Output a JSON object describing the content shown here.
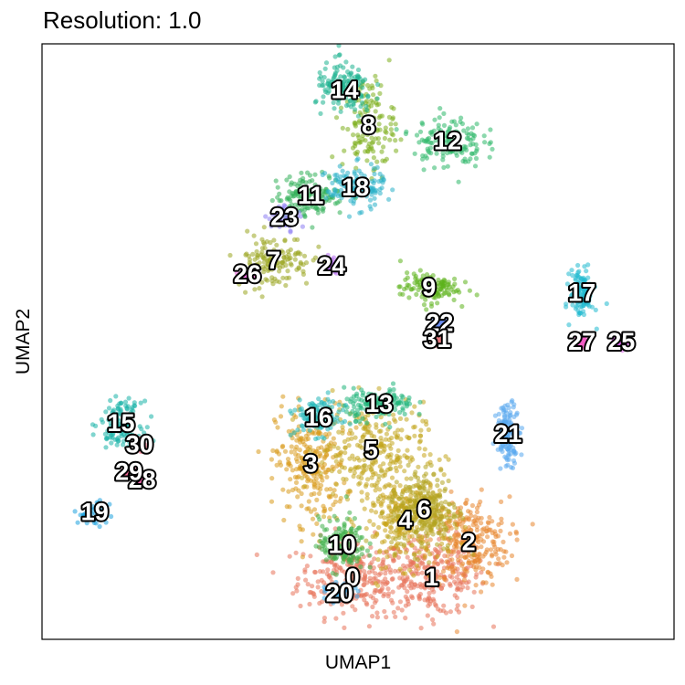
{
  "chart_data": {
    "type": "scatter",
    "title": "Resolution: 1.0",
    "xlabel": "UMAP1",
    "ylabel": "UMAP2",
    "grid": false,
    "legend": "none",
    "clusters": [
      {
        "label": "0",
        "x": 5.3,
        "y": 1.3,
        "color": "#E8735A"
      },
      {
        "label": "1",
        "x": 8.3,
        "y": 1.3,
        "color": "#E8735A"
      },
      {
        "label": "2",
        "x": 9.7,
        "y": 2.6,
        "color": "#E8862F"
      },
      {
        "label": "3",
        "x": 3.7,
        "y": 5.5,
        "color": "#D89B1C"
      },
      {
        "label": "4",
        "x": 7.3,
        "y": 3.4,
        "color": "#C9A41A"
      },
      {
        "label": "5",
        "x": 6.0,
        "y": 6.0,
        "color": "#C2A51E"
      },
      {
        "label": "6",
        "x": 8.0,
        "y": 3.8,
        "color": "#B3A420"
      },
      {
        "label": "7",
        "x": 2.3,
        "y": 13.0,
        "color": "#9AA520"
      },
      {
        "label": "8",
        "x": 5.9,
        "y": 18.0,
        "color": "#7DAE1E"
      },
      {
        "label": "9",
        "x": 8.2,
        "y": 12.0,
        "color": "#5CB31C"
      },
      {
        "label": "10",
        "x": 4.9,
        "y": 2.5,
        "color": "#3FB14A"
      },
      {
        "label": "11",
        "x": 3.7,
        "y": 15.4,
        "color": "#33B05A"
      },
      {
        "label": "12",
        "x": 8.9,
        "y": 17.4,
        "color": "#2DB86A"
      },
      {
        "label": "13",
        "x": 6.3,
        "y": 7.7,
        "color": "#1FB47A"
      },
      {
        "label": "14",
        "x": 5.0,
        "y": 19.3,
        "color": "#1DB38F"
      },
      {
        "label": "15",
        "x": -3.5,
        "y": 7.0,
        "color": "#18B3A8"
      },
      {
        "label": "16",
        "x": 4.0,
        "y": 7.2,
        "color": "#22B6B8"
      },
      {
        "label": "17",
        "x": 14.0,
        "y": 11.8,
        "color": "#21BAD0"
      },
      {
        "label": "18",
        "x": 5.4,
        "y": 15.7,
        "color": "#2AB0C8"
      },
      {
        "label": "19",
        "x": -4.5,
        "y": 3.7,
        "color": "#1FA3DF"
      },
      {
        "label": "20",
        "x": 4.8,
        "y": 0.7,
        "color": "#3BA8E8"
      },
      {
        "label": "21",
        "x": 11.2,
        "y": 6.6,
        "color": "#58A8EE"
      },
      {
        "label": "22",
        "x": 8.6,
        "y": 10.7,
        "color": "#6A8CF0"
      },
      {
        "label": "23",
        "x": 2.7,
        "y": 14.6,
        "color": "#8C7EF2"
      },
      {
        "label": "24",
        "x": 4.5,
        "y": 12.8,
        "color": "#B46CF0"
      },
      {
        "label": "25",
        "x": 15.5,
        "y": 10.0,
        "color": "#D65FE6"
      },
      {
        "label": "26",
        "x": 1.3,
        "y": 12.5,
        "color": "#E85CD8"
      },
      {
        "label": "27",
        "x": 14.0,
        "y": 10.0,
        "color": "#F05CC4"
      },
      {
        "label": "28",
        "x": -2.7,
        "y": 4.9,
        "color": "#F562AE"
      },
      {
        "label": "29",
        "x": -3.2,
        "y": 5.2,
        "color": "#F56A98"
      },
      {
        "label": "30",
        "x": -2.8,
        "y": 6.2,
        "color": "#F0748A"
      },
      {
        "label": "31",
        "x": 8.5,
        "y": 10.1,
        "color": "#E8787E"
      }
    ]
  }
}
